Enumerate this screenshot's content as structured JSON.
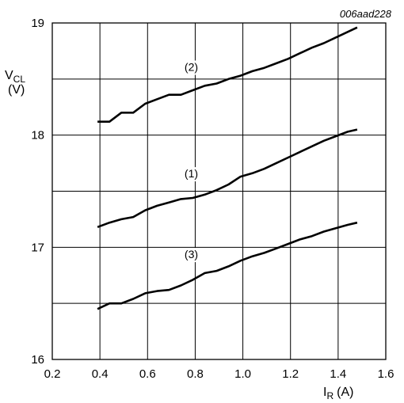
{
  "chart_data": {
    "type": "line",
    "doc_id": "006aad228",
    "ylabel": {
      "main": "V",
      "sub": "CL",
      "unit": "(V)"
    },
    "xlabel": {
      "main": "I",
      "sub": "R",
      "unit": "(A)"
    },
    "xlim": [
      0.2,
      1.6
    ],
    "ylim": [
      16,
      19
    ],
    "grid": true,
    "x_ticks": [
      "0.2",
      "0.4",
      "0.6",
      "0.8",
      "1.0",
      "1.2",
      "1.4",
      "1.6"
    ],
    "y_ticks": [
      "16",
      "17",
      "18",
      "19"
    ],
    "series": [
      {
        "name": "(1)",
        "points": [
          [
            0.39,
            17.18
          ],
          [
            0.44,
            17.22
          ],
          [
            0.49,
            17.25
          ],
          [
            0.54,
            17.27
          ],
          [
            0.59,
            17.33
          ],
          [
            0.64,
            17.37
          ],
          [
            0.69,
            17.4
          ],
          [
            0.74,
            17.43
          ],
          [
            0.79,
            17.44
          ],
          [
            0.84,
            17.47
          ],
          [
            0.89,
            17.51
          ],
          [
            0.94,
            17.56
          ],
          [
            0.99,
            17.63
          ],
          [
            1.04,
            17.66
          ],
          [
            1.09,
            17.7
          ],
          [
            1.14,
            17.75
          ],
          [
            1.19,
            17.8
          ],
          [
            1.24,
            17.85
          ],
          [
            1.29,
            17.9
          ],
          [
            1.34,
            17.95
          ],
          [
            1.39,
            17.99
          ],
          [
            1.44,
            18.03
          ],
          [
            1.48,
            18.05
          ]
        ]
      },
      {
        "name": "(2)",
        "points": [
          [
            0.39,
            18.12
          ],
          [
            0.44,
            18.12
          ],
          [
            0.49,
            18.2
          ],
          [
            0.54,
            18.2
          ],
          [
            0.59,
            18.28
          ],
          [
            0.64,
            18.32
          ],
          [
            0.69,
            18.36
          ],
          [
            0.74,
            18.36
          ],
          [
            0.79,
            18.4
          ],
          [
            0.84,
            18.44
          ],
          [
            0.89,
            18.46
          ],
          [
            0.94,
            18.5
          ],
          [
            0.99,
            18.53
          ],
          [
            1.04,
            18.57
          ],
          [
            1.09,
            18.6
          ],
          [
            1.14,
            18.64
          ],
          [
            1.19,
            18.68
          ],
          [
            1.24,
            18.73
          ],
          [
            1.29,
            18.78
          ],
          [
            1.34,
            18.82
          ],
          [
            1.39,
            18.87
          ],
          [
            1.44,
            18.92
          ],
          [
            1.48,
            18.96
          ]
        ]
      },
      {
        "name": "(3)",
        "points": [
          [
            0.39,
            16.45
          ],
          [
            0.44,
            16.5
          ],
          [
            0.49,
            16.5
          ],
          [
            0.54,
            16.54
          ],
          [
            0.59,
            16.59
          ],
          [
            0.64,
            16.61
          ],
          [
            0.69,
            16.62
          ],
          [
            0.74,
            16.66
          ],
          [
            0.79,
            16.71
          ],
          [
            0.84,
            16.77
          ],
          [
            0.89,
            16.79
          ],
          [
            0.94,
            16.83
          ],
          [
            0.99,
            16.88
          ],
          [
            1.04,
            16.92
          ],
          [
            1.09,
            16.95
          ],
          [
            1.14,
            16.99
          ],
          [
            1.19,
            17.03
          ],
          [
            1.24,
            17.07
          ],
          [
            1.29,
            17.1
          ],
          [
            1.34,
            17.14
          ],
          [
            1.39,
            17.17
          ],
          [
            1.44,
            17.2
          ],
          [
            1.48,
            17.22
          ]
        ]
      }
    ]
  }
}
